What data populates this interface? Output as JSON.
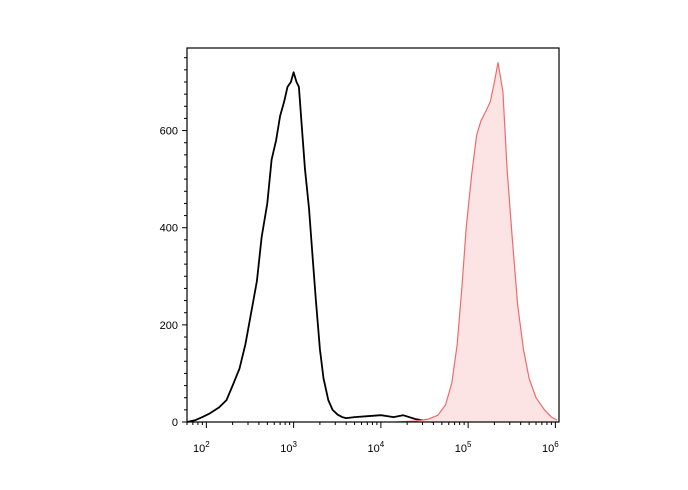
{
  "chart_data": {
    "type": "area",
    "title": "",
    "xlabel": "",
    "ylabel": "",
    "x_scale": "log",
    "xlim": [
      60,
      1100000
    ],
    "ylim": [
      0,
      770
    ],
    "grid": false,
    "legend": "none",
    "x_ticks": [
      {
        "base": "10",
        "exp": "2",
        "value": 100
      },
      {
        "base": "10",
        "exp": "3",
        "value": 1000
      },
      {
        "base": "10",
        "exp": "4",
        "value": 10000
      },
      {
        "base": "10",
        "exp": "5",
        "value": 100000
      },
      {
        "base": "10",
        "exp": "6",
        "value": 1000000
      }
    ],
    "y_ticks": [
      {
        "label": "0",
        "value": 0
      },
      {
        "label": "200",
        "value": 200
      },
      {
        "label": "400",
        "value": 400
      },
      {
        "label": "600",
        "value": 600
      }
    ],
    "series": [
      {
        "color": "#000000",
        "fill": false,
        "x": [
          60,
          75,
          90,
          110,
          140,
          170,
          200,
          240,
          280,
          330,
          380,
          430,
          500,
          560,
          630,
          700,
          780,
          850,
          930,
          1000,
          1080,
          1150,
          1250,
          1350,
          1500,
          1650,
          1800,
          2000,
          2200,
          2500,
          2800,
          3200,
          3600,
          4000,
          5000,
          7000,
          10000,
          14000,
          18000,
          25000,
          40000
        ],
        "y": [
          0,
          4,
          10,
          18,
          30,
          45,
          75,
          110,
          160,
          230,
          290,
          380,
          450,
          540,
          580,
          630,
          660,
          690,
          700,
          720,
          700,
          690,
          600,
          520,
          440,
          340,
          250,
          150,
          90,
          45,
          25,
          15,
          10,
          8,
          10,
          12,
          14,
          10,
          14,
          6,
          0
        ]
      },
      {
        "color": "#ef6b6b",
        "fill": true,
        "fill_color": "#fde4e4",
        "x": [
          15000,
          25000,
          35000,
          45000,
          55000,
          65000,
          75000,
          85000,
          95000,
          110000,
          125000,
          140000,
          160000,
          180000,
          200000,
          220000,
          250000,
          280000,
          320000,
          370000,
          430000,
          500000,
          600000,
          750000,
          900000,
          1050000
        ],
        "y": [
          0,
          2,
          6,
          14,
          35,
          80,
          160,
          280,
          400,
          510,
          590,
          620,
          640,
          660,
          700,
          740,
          680,
          520,
          380,
          240,
          150,
          90,
          50,
          25,
          10,
          4
        ]
      }
    ]
  }
}
